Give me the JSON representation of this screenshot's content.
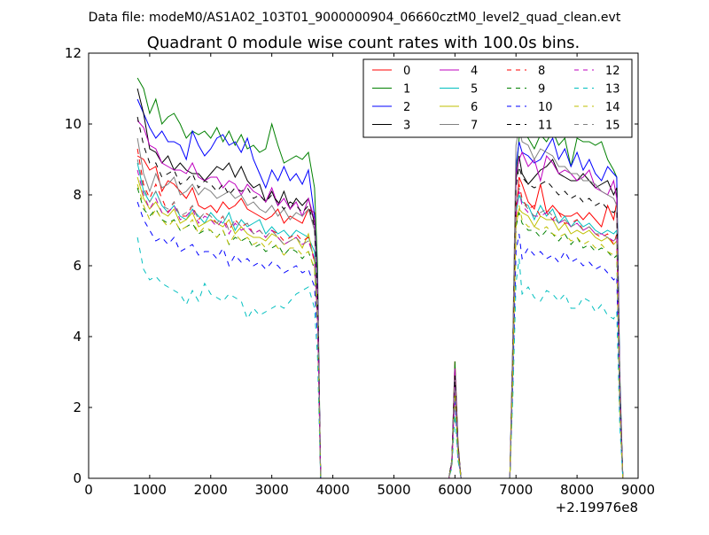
{
  "figure": {
    "suptitle": "Data file: modeM0/AS1A02_103T01_9000000904_06660cztM0_level2_quad_clean.evt",
    "x_offset_label": "+2.19976e8"
  },
  "chart_data": {
    "type": "line",
    "title": "Quadrant 0 module wise count rates with 100.0s bins.",
    "xlabel": "",
    "ylabel": "",
    "xlim": [
      0,
      9000
    ],
    "ylim": [
      0,
      12
    ],
    "x_ticks": [
      0,
      1000,
      2000,
      3000,
      4000,
      5000,
      6000,
      7000,
      8000,
      9000
    ],
    "y_ticks": [
      0,
      2,
      4,
      6,
      8,
      10,
      12
    ],
    "grid": false,
    "legend": {
      "position": "top-right",
      "columns": 4
    },
    "x_offset": 219976000,
    "x": [
      800,
      900,
      1000,
      1100,
      1200,
      1300,
      1400,
      1500,
      1600,
      1700,
      1800,
      1900,
      2000,
      2100,
      2200,
      2300,
      2400,
      2500,
      2600,
      2700,
      2800,
      2900,
      3000,
      3100,
      3200,
      3300,
      3400,
      3500,
      3600,
      3700,
      3750,
      3800,
      3850,
      3900,
      4000,
      5000,
      5900,
      5950,
      6000,
      6050,
      6100,
      6200,
      6800,
      6900,
      6950,
      7000,
      7050,
      7100,
      7200,
      7300,
      7400,
      7500,
      7600,
      7700,
      7800,
      7900,
      8000,
      8100,
      8200,
      8300,
      8400,
      8500,
      8600,
      8650,
      8700,
      8750
    ],
    "series": [
      {
        "name": "0",
        "color": "#ff0000",
        "dash": "solid",
        "values": [
          9.1,
          9.0,
          8.7,
          8.8,
          8.1,
          8.4,
          8.3,
          8.1,
          7.9,
          8.2,
          7.7,
          7.6,
          7.7,
          7.5,
          7.8,
          7.6,
          7.7,
          7.9,
          7.6,
          7.5,
          7.4,
          7.3,
          7.4,
          7.6,
          7.2,
          7.4,
          7.3,
          7.2,
          7.6,
          7.5,
          5.2,
          0,
          0,
          0,
          0,
          0,
          0,
          0.5,
          3.3,
          1.0,
          0,
          0,
          0,
          0,
          3.3,
          7.3,
          8.5,
          8.3,
          7.8,
          7.6,
          8.3,
          7.5,
          7.7,
          7.5,
          7.4,
          7.4,
          7.5,
          7.3,
          7.5,
          7.3,
          7.1,
          7.7,
          7.3,
          7.8,
          2.5,
          0
        ]
      },
      {
        "name": "1",
        "color": "#008000",
        "dash": "solid",
        "values": [
          11.3,
          11.0,
          10.3,
          10.7,
          10.0,
          10.2,
          10.3,
          10.0,
          9.6,
          9.8,
          9.7,
          9.8,
          9.6,
          9.9,
          9.5,
          9.8,
          9.4,
          9.7,
          9.3,
          9.4,
          9.2,
          9.3,
          10.0,
          9.4,
          8.9,
          9.0,
          9.1,
          9.0,
          9.2,
          8.2,
          6.0,
          0,
          0,
          0,
          0,
          0,
          0,
          0.5,
          3.3,
          1.0,
          0,
          0,
          0,
          0,
          4.0,
          8.5,
          9.6,
          9.8,
          9.6,
          9.3,
          9.7,
          9.5,
          9.8,
          9.4,
          9.6,
          8.8,
          9.6,
          9.5,
          9.5,
          9.4,
          9.5,
          9.0,
          8.7,
          8.5,
          3.0,
          0
        ]
      },
      {
        "name": "2",
        "color": "#0000ff",
        "dash": "solid",
        "values": [
          10.7,
          10.3,
          9.9,
          9.6,
          9.8,
          9.5,
          9.5,
          9.4,
          9.0,
          9.8,
          9.4,
          9.1,
          9.3,
          9.6,
          9.7,
          9.4,
          9.5,
          9.2,
          9.6,
          9.0,
          8.6,
          8.2,
          8.7,
          8.4,
          8.8,
          8.4,
          8.6,
          8.3,
          8.7,
          7.4,
          5.5,
          0,
          0,
          0,
          0,
          0,
          0,
          0.5,
          3.0,
          0.9,
          0,
          0,
          0,
          0,
          3.9,
          8.8,
          9.5,
          9.2,
          9.1,
          8.9,
          9.0,
          9.3,
          9.6,
          9.0,
          9.3,
          8.8,
          9.2,
          8.7,
          9.0,
          8.6,
          8.4,
          8.8,
          8.6,
          8.5,
          2.8,
          0
        ]
      },
      {
        "name": "3",
        "color": "#000000",
        "dash": "solid",
        "values": [
          11.0,
          10.3,
          9.3,
          9.2,
          8.9,
          9.1,
          8.7,
          8.9,
          8.7,
          8.6,
          8.6,
          8.4,
          8.6,
          8.8,
          8.7,
          8.9,
          8.5,
          8.8,
          8.4,
          8.2,
          8.3,
          7.8,
          8.1,
          7.7,
          8.1,
          7.6,
          7.9,
          7.7,
          7.9,
          7.2,
          5.3,
          0,
          0,
          0,
          0,
          0,
          0,
          0.5,
          3.0,
          0.9,
          0,
          0,
          0,
          0,
          3.6,
          8.4,
          9.1,
          8.6,
          8.3,
          8.5,
          8.7,
          8.8,
          9.0,
          8.6,
          8.5,
          8.4,
          8.4,
          8.6,
          8.4,
          8.2,
          8.3,
          8.4,
          8.0,
          8.2,
          2.6,
          0
        ]
      },
      {
        "name": "4",
        "color": "#bf00bf",
        "dash": "solid",
        "values": [
          10.1,
          9.9,
          9.4,
          9.3,
          8.9,
          8.8,
          8.7,
          8.7,
          8.6,
          8.9,
          8.5,
          8.4,
          8.5,
          8.5,
          8.2,
          8.4,
          8.3,
          8.0,
          8.3,
          8.1,
          8.0,
          7.8,
          8.2,
          7.7,
          7.9,
          7.6,
          7.8,
          7.4,
          7.9,
          7.3,
          5.4,
          0,
          0,
          0,
          0,
          0,
          0,
          0.5,
          3.1,
          0.9,
          0,
          0,
          0,
          0,
          3.7,
          8.6,
          9.0,
          9.2,
          8.8,
          9.0,
          8.4,
          9.1,
          8.9,
          8.6,
          8.7,
          8.6,
          8.4,
          8.5,
          8.7,
          8.2,
          8.1,
          8.0,
          8.4,
          7.9,
          2.6,
          0
        ]
      },
      {
        "name": "5",
        "color": "#00bfbf",
        "dash": "solid",
        "values": [
          8.9,
          8.1,
          7.8,
          8.1,
          7.7,
          7.5,
          7.7,
          7.4,
          7.3,
          7.6,
          7.4,
          7.2,
          7.5,
          7.3,
          7.2,
          7.5,
          7.0,
          7.3,
          7.1,
          7.2,
          7.3,
          6.9,
          7.1,
          6.9,
          7.0,
          6.8,
          7.0,
          6.9,
          6.8,
          6.4,
          4.7,
          0,
          0,
          0,
          0,
          0,
          0,
          0.5,
          2.7,
          0.8,
          0,
          0,
          0,
          0,
          3.2,
          7.5,
          8.0,
          7.8,
          7.7,
          7.3,
          7.7,
          7.4,
          7.6,
          7.2,
          7.4,
          7.1,
          7.3,
          7.1,
          7.2,
          7.0,
          6.9,
          7.0,
          6.9,
          7.0,
          2.2,
          0
        ]
      },
      {
        "name": "6",
        "color": "#bfbf00",
        "dash": "solid",
        "values": [
          8.5,
          7.9,
          7.6,
          7.8,
          7.5,
          7.4,
          7.6,
          7.2,
          7.3,
          7.5,
          7.1,
          7.2,
          7.3,
          7.2,
          7.1,
          7.3,
          6.9,
          7.1,
          6.9,
          6.8,
          6.8,
          6.7,
          6.9,
          6.8,
          6.6,
          6.7,
          6.8,
          6.5,
          6.9,
          6.1,
          4.6,
          0,
          0,
          0,
          0,
          0,
          0,
          0.5,
          2.6,
          0.8,
          0,
          0,
          0,
          0,
          3.1,
          7.1,
          7.6,
          7.5,
          7.4,
          7.1,
          7.4,
          7.3,
          7.3,
          7.0,
          7.2,
          6.9,
          7.0,
          6.9,
          7.0,
          6.8,
          6.7,
          6.8,
          6.6,
          6.7,
          2.2,
          0
        ]
      },
      {
        "name": "7",
        "color": "#808080",
        "dash": "solid",
        "values": [
          9.6,
          8.6,
          8.1,
          8.6,
          8.2,
          8.3,
          8.5,
          8.0,
          8.1,
          8.3,
          8.0,
          8.2,
          8.1,
          7.9,
          8.0,
          8.1,
          7.9,
          8.0,
          7.7,
          7.8,
          7.6,
          7.5,
          7.7,
          7.4,
          7.6,
          7.3,
          7.5,
          7.4,
          7.6,
          7.0,
          5.0,
          0,
          0,
          0,
          0,
          0,
          0,
          0.5,
          2.8,
          0.8,
          0,
          0,
          0,
          0,
          4.2,
          9.4,
          9.9,
          9.5,
          9.4,
          9.0,
          9.3,
          9.2,
          9.1,
          8.8,
          8.8,
          8.6,
          8.6,
          8.4,
          8.4,
          8.3,
          8.1,
          8.0,
          7.9,
          7.7,
          2.5,
          0
        ]
      },
      {
        "name": "8",
        "color": "#ff0000",
        "dash": "dashed",
        "values": [
          9.3,
          8.3,
          7.9,
          8.3,
          7.9,
          7.5,
          7.8,
          7.4,
          7.4,
          7.7,
          7.3,
          7.5,
          7.4,
          7.2,
          7.4,
          7.0,
          7.3,
          7.1,
          7.2,
          6.9,
          7.0,
          6.8,
          7.0,
          6.9,
          6.7,
          6.8,
          6.9,
          6.7,
          6.8,
          6.1,
          4.5,
          0,
          0,
          0,
          0,
          0,
          0,
          0.4,
          2.5,
          0.7,
          0,
          0,
          0,
          0,
          3.3,
          7.7,
          8.3,
          7.9,
          7.6,
          7.7,
          7.4,
          7.5,
          7.3,
          7.5,
          7.2,
          7.2,
          7.3,
          7.0,
          7.1,
          6.9,
          6.8,
          6.9,
          6.6,
          6.9,
          2.2,
          0
        ]
      },
      {
        "name": "9",
        "color": "#008000",
        "dash": "dashed",
        "values": [
          8.2,
          7.6,
          7.4,
          7.6,
          7.3,
          7.2,
          7.3,
          7.0,
          7.1,
          7.2,
          6.9,
          7.0,
          7.0,
          6.8,
          7.0,
          6.6,
          6.8,
          6.7,
          6.8,
          6.5,
          6.6,
          6.4,
          6.5,
          6.6,
          6.3,
          6.5,
          6.4,
          6.2,
          6.4,
          5.9,
          4.3,
          0,
          0,
          0,
          0,
          0,
          0,
          0.4,
          2.4,
          0.7,
          0,
          0,
          0,
          0,
          3.1,
          7.1,
          7.5,
          7.2,
          7.0,
          7.0,
          6.8,
          7.0,
          6.9,
          6.7,
          6.9,
          6.6,
          6.8,
          6.5,
          6.6,
          6.4,
          6.5,
          6.4,
          6.2,
          6.3,
          2.0,
          0
        ]
      },
      {
        "name": "10",
        "color": "#0000ff",
        "dash": "dashed",
        "values": [
          7.8,
          7.3,
          7.0,
          6.7,
          6.8,
          6.6,
          6.8,
          6.4,
          6.5,
          6.6,
          6.3,
          6.4,
          6.4,
          6.2,
          6.5,
          6.0,
          6.3,
          6.1,
          6.2,
          6.0,
          6.1,
          5.9,
          6.1,
          6.0,
          5.8,
          5.9,
          6.0,
          5.8,
          5.9,
          5.4,
          4.0,
          0,
          0,
          0,
          0,
          0,
          0,
          0.4,
          2.2,
          0.6,
          0,
          0,
          0,
          0,
          2.8,
          6.4,
          6.9,
          6.2,
          6.5,
          6.3,
          6.4,
          6.2,
          6.3,
          6.1,
          6.4,
          6.1,
          6.2,
          6.0,
          6.1,
          5.9,
          6.0,
          5.8,
          5.6,
          5.7,
          1.8,
          0
        ]
      },
      {
        "name": "11",
        "color": "#000000",
        "dash": "dashed",
        "values": [
          10.2,
          9.4,
          8.9,
          8.9,
          8.5,
          8.6,
          8.7,
          8.3,
          8.4,
          8.6,
          8.2,
          8.4,
          8.3,
          8.1,
          8.3,
          8.0,
          8.2,
          8.1,
          8.2,
          7.9,
          8.0,
          7.8,
          8.0,
          7.8,
          7.6,
          7.8,
          7.7,
          7.5,
          7.7,
          7.1,
          5.2,
          0,
          0,
          0,
          0,
          0,
          0,
          0.5,
          2.9,
          0.8,
          0,
          0,
          0,
          0,
          3.6,
          8.2,
          8.8,
          8.5,
          8.3,
          8.2,
          8.3,
          8.4,
          8.2,
          8.0,
          8.1,
          7.9,
          8.0,
          7.8,
          7.9,
          7.7,
          7.8,
          7.6,
          7.5,
          7.6,
          2.4,
          0
        ]
      },
      {
        "name": "12",
        "color": "#bf00bf",
        "dash": "dashed",
        "values": [
          8.7,
          8.0,
          7.6,
          7.9,
          7.5,
          7.5,
          7.7,
          7.3,
          7.4,
          7.6,
          7.2,
          7.4,
          7.3,
          7.1,
          7.3,
          6.9,
          7.2,
          7.0,
          7.1,
          6.9,
          7.0,
          6.8,
          7.0,
          6.8,
          6.6,
          6.7,
          6.8,
          6.6,
          6.7,
          6.2,
          4.6,
          0,
          0,
          0,
          0,
          0,
          0,
          0.4,
          2.6,
          0.7,
          0,
          0,
          0,
          0,
          3.3,
          7.5,
          8.1,
          7.7,
          7.5,
          7.4,
          7.4,
          7.5,
          7.3,
          7.2,
          7.3,
          7.1,
          7.2,
          7.0,
          7.1,
          6.9,
          6.9,
          6.8,
          6.7,
          6.8,
          2.2,
          0
        ]
      },
      {
        "name": "13",
        "color": "#00bfbf",
        "dash": "dashed",
        "values": [
          6.8,
          5.9,
          5.6,
          5.7,
          5.5,
          5.4,
          5.3,
          5.2,
          4.9,
          5.3,
          5.0,
          5.5,
          5.2,
          5.1,
          5.0,
          5.2,
          5.1,
          5.0,
          4.5,
          4.8,
          4.6,
          4.7,
          4.8,
          4.9,
          4.8,
          5.0,
          5.2,
          5.3,
          5.4,
          4.8,
          3.4,
          0,
          0,
          0,
          0,
          0,
          0,
          0.3,
          1.8,
          0.5,
          0,
          0,
          0,
          0,
          2.4,
          5.5,
          6.2,
          5.2,
          5.4,
          5.1,
          5.0,
          5.3,
          5.2,
          5.0,
          5.2,
          4.8,
          4.8,
          5.1,
          5.0,
          4.7,
          4.9,
          4.6,
          4.5,
          4.7,
          1.5,
          0
        ]
      },
      {
        "name": "14",
        "color": "#bfbf00",
        "dash": "dashed",
        "values": [
          8.3,
          7.7,
          7.3,
          7.6,
          7.3,
          7.1,
          7.3,
          7.0,
          7.1,
          7.3,
          6.9,
          7.1,
          7.0,
          6.8,
          7.0,
          6.6,
          6.9,
          6.7,
          6.8,
          6.6,
          6.7,
          6.5,
          6.7,
          6.5,
          6.3,
          6.5,
          6.5,
          6.3,
          6.4,
          5.9,
          4.4,
          0,
          0,
          0,
          0,
          0,
          0,
          0.4,
          2.4,
          0.7,
          0,
          0,
          0,
          0,
          3.1,
          7.2,
          7.7,
          7.3,
          7.1,
          7.1,
          7.0,
          7.1,
          6.9,
          6.8,
          6.9,
          6.7,
          6.8,
          6.6,
          6.7,
          6.5,
          6.6,
          6.4,
          6.3,
          6.4,
          2.0,
          0
        ]
      },
      {
        "name": "15",
        "color": "#808080",
        "dash": "dashed",
        "values": [
          9.0,
          8.2,
          7.8,
          8.1,
          7.7,
          7.6,
          7.8,
          7.4,
          7.5,
          7.7,
          7.3,
          7.5,
          7.4,
          7.2,
          7.4,
          7.0,
          7.3,
          7.1,
          7.2,
          6.9,
          7.0,
          6.8,
          7.0,
          6.8,
          6.6,
          6.7,
          6.8,
          6.6,
          6.7,
          6.2,
          4.6,
          0,
          0,
          0,
          0,
          0,
          0,
          0.4,
          2.6,
          0.7,
          0,
          0,
          0,
          0,
          3.4,
          7.6,
          8.2,
          7.8,
          7.6,
          7.4,
          7.5,
          7.6,
          7.4,
          7.2,
          7.3,
          7.1,
          7.2,
          7.0,
          7.1,
          6.9,
          6.9,
          6.8,
          6.7,
          6.8,
          2.2,
          0
        ]
      }
    ]
  }
}
